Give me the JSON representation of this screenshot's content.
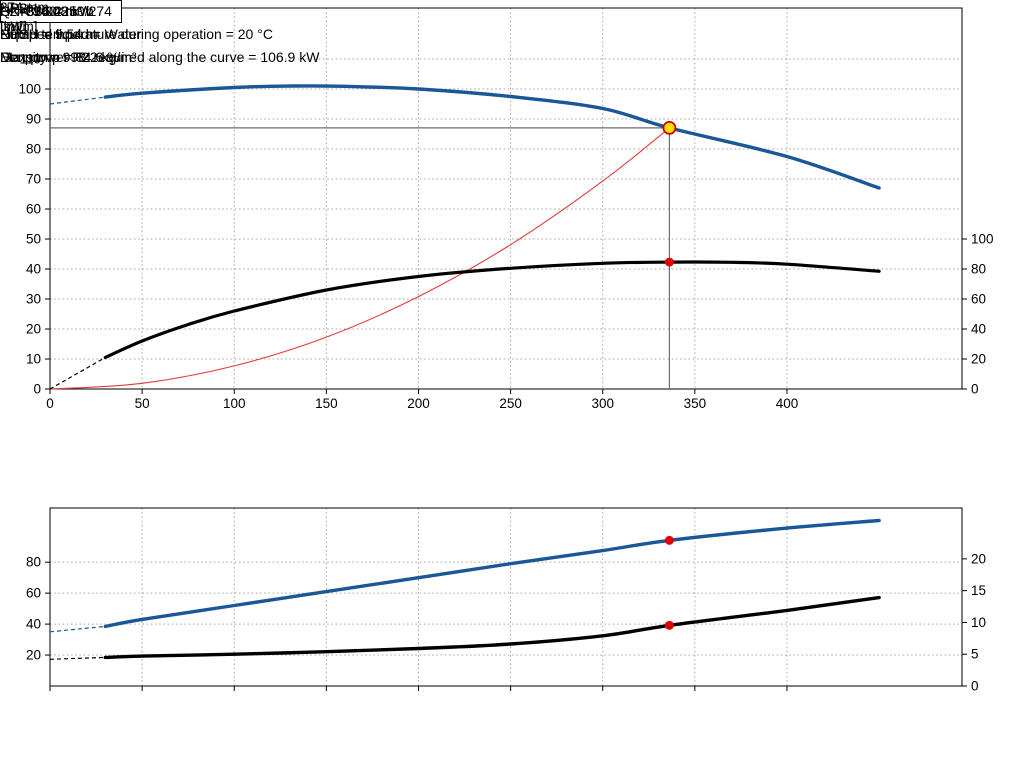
{
  "window": {
    "title_box": "NK 100-250/274"
  },
  "colors": {
    "curve_blue": "#1a5796",
    "curve_black": "#000000",
    "system_red": "#e23b3b",
    "grid": "#a8a8a8",
    "guide": "#6e6e6e",
    "duty_dot": "#e00000",
    "duty_ring_fill": "#ffdf00",
    "duty_ring_stroke": "#d00000"
  },
  "top_chart": {
    "y_left_title": "H",
    "y_left_unit": "[m]",
    "y_right_title": "eta",
    "y_right_unit": "[%]",
    "x_title": "Q [m³/h]",
    "impeller_label": "274 mm"
  },
  "bottom_chart": {
    "y_left_title": "P2",
    "y_left_unit": "[kW]",
    "y_right_title": "NPSH",
    "y_right_unit": "[m]"
  },
  "annotations": {
    "left": [
      "Q = 336.2 m³/h",
      "Pumped liquid = Water",
      "Density = 998.2 kg/m³"
    ],
    "right": [
      "H = 87.04 m",
      "Liquid temperature during operation = 20 °C",
      "Eta pump = 84.6 %"
    ]
  },
  "bottom_annotations": {
    "lines": [
      "P2 = 94.08 kW",
      "NPSH = 9.54 m",
      "Max power P2 required along the curve = 106.9 kW"
    ]
  },
  "chart_data": [
    {
      "type": "line",
      "name": "pump-performance-curve",
      "title": "NK 100-250/274",
      "x": {
        "label": "Q [m³/h]",
        "min": 0,
        "max": 495,
        "ticks": [
          0,
          50,
          100,
          150,
          200,
          250,
          300,
          350,
          400
        ],
        "labels_visible": true
      },
      "y_left": {
        "label": "H [m]",
        "min": 0,
        "max": 127,
        "ticks": [
          0,
          10,
          20,
          30,
          40,
          50,
          60,
          70,
          80,
          90,
          100,
          110
        ]
      },
      "y_right": {
        "label": "eta [%]",
        "min": 0,
        "max": 254,
        "ticks": [
          0,
          20,
          40,
          60,
          80,
          100
        ]
      },
      "series": [
        {
          "name": "system-curve",
          "axis": "left",
          "color": "#e23b3b",
          "width": 1.1,
          "points": [
            [
              0,
              0
            ],
            [
              50,
              1.9
            ],
            [
              100,
              7.7
            ],
            [
              150,
              17.3
            ],
            [
              200,
              30.8
            ],
            [
              250,
              48.1
            ],
            [
              300,
              69.3
            ],
            [
              336.2,
              87.04
            ]
          ]
        },
        {
          "name": "efficiency-curve",
          "axis": "right",
          "color": "#000000",
          "width": 3.2,
          "dash_split": 30,
          "points": [
            [
              0,
              0
            ],
            [
              30,
              21
            ],
            [
              50,
              32
            ],
            [
              75,
              43
            ],
            [
              100,
              52
            ],
            [
              150,
              66
            ],
            [
              200,
              75
            ],
            [
              250,
              80.5
            ],
            [
              300,
              83.8
            ],
            [
              336.2,
              84.6
            ],
            [
              370,
              84.5
            ],
            [
              400,
              83.2
            ],
            [
              450,
              78.5
            ]
          ]
        },
        {
          "name": "head-curve-274mm",
          "axis": "left",
          "color": "#1a5796",
          "width": 3.4,
          "dash_split": 30,
          "points": [
            [
              0,
              95
            ],
            [
              30,
              97.3
            ],
            [
              50,
              98.6
            ],
            [
              100,
              100.5
            ],
            [
              130,
              101
            ],
            [
              160,
              100.9
            ],
            [
              200,
              100
            ],
            [
              250,
              97.5
            ],
            [
              300,
              93.5
            ],
            [
              336.2,
              87.04
            ],
            [
              400,
              77.5
            ],
            [
              450,
              67
            ]
          ]
        }
      ],
      "duty_point": {
        "q": 336.2,
        "left_value": 87.04,
        "right_value": 84.6,
        "guides": true,
        "marker": "ring"
      }
    },
    {
      "type": "line",
      "name": "power-and-npsh-curve",
      "x": {
        "label": "",
        "min": 0,
        "max": 495,
        "ticks": [
          0,
          50,
          100,
          150,
          200,
          250,
          300,
          350,
          400
        ],
        "labels_visible": false
      },
      "y_left": {
        "label": "P2 [kW]",
        "min": 0,
        "max": 115,
        "ticks": [
          20,
          40,
          60,
          80
        ]
      },
      "y_right": {
        "label": "NPSH [m]",
        "min": 0,
        "max": 28,
        "ticks": [
          0,
          5,
          10,
          15,
          20
        ]
      },
      "series": [
        {
          "name": "p2-curve",
          "axis": "left",
          "color": "#1a5796",
          "width": 3.4,
          "dash_split": 30,
          "points": [
            [
              0,
              35
            ],
            [
              30,
              38.5
            ],
            [
              50,
              43
            ],
            [
              100,
              52
            ],
            [
              150,
              61
            ],
            [
              200,
              70
            ],
            [
              250,
              79
            ],
            [
              300,
              87.5
            ],
            [
              336.2,
              94.08
            ],
            [
              400,
              102
            ],
            [
              450,
              106.9
            ]
          ]
        },
        {
          "name": "npsh-curve",
          "axis": "right",
          "color": "#000000",
          "width": 3.4,
          "dash_split": 30,
          "points": [
            [
              0,
              4.2
            ],
            [
              30,
              4.5
            ],
            [
              50,
              4.7
            ],
            [
              100,
              5.0
            ],
            [
              150,
              5.4
            ],
            [
              200,
              5.9
            ],
            [
              250,
              6.6
            ],
            [
              300,
              7.9
            ],
            [
              336.2,
              9.54
            ],
            [
              400,
              11.9
            ],
            [
              450,
              13.9
            ]
          ]
        }
      ],
      "duty_point": {
        "q": 336.2,
        "left_value": 94.08,
        "right_value": 9.54,
        "guides": false,
        "marker": "dot"
      }
    }
  ]
}
